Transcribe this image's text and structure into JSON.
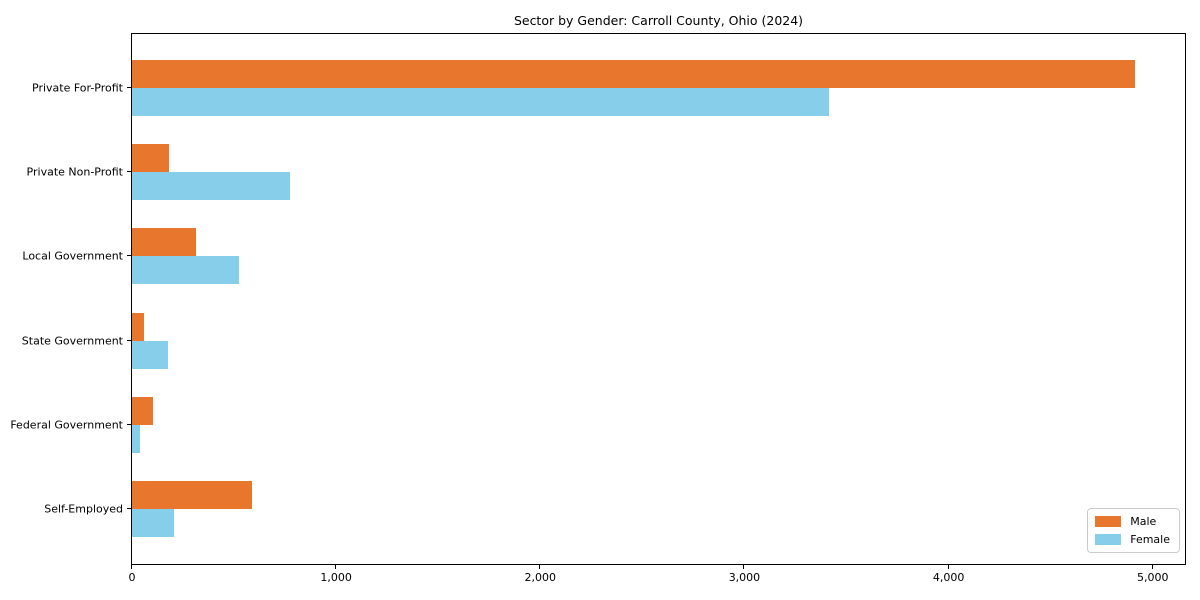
{
  "chart_data": {
    "type": "bar",
    "orientation": "horizontal",
    "title": "Sector by Gender: Carroll County, Ohio (2024)",
    "categories": [
      "Private For-Profit",
      "Private Non-Profit",
      "Local Government",
      "State Government",
      "Federal Government",
      "Self-Employed"
    ],
    "series": [
      {
        "name": "Male",
        "color": "#e8762d",
        "values": [
          4912,
          181,
          313,
          59,
          103,
          587
        ]
      },
      {
        "name": "Female",
        "color": "#87ceeb",
        "values": [
          3415,
          773,
          524,
          176,
          39,
          205
        ]
      }
    ],
    "xlabel": "",
    "ylabel": "",
    "xlim": [
      0,
      5158
    ],
    "xticks": [
      0,
      1000,
      2000,
      3000,
      4000,
      5000
    ],
    "xtick_labels": [
      "0",
      "1,000",
      "2,000",
      "3,000",
      "4,000",
      "5,000"
    ],
    "grid": false,
    "legend": {
      "position": "lower right",
      "entries": [
        "Male",
        "Female"
      ]
    }
  }
}
